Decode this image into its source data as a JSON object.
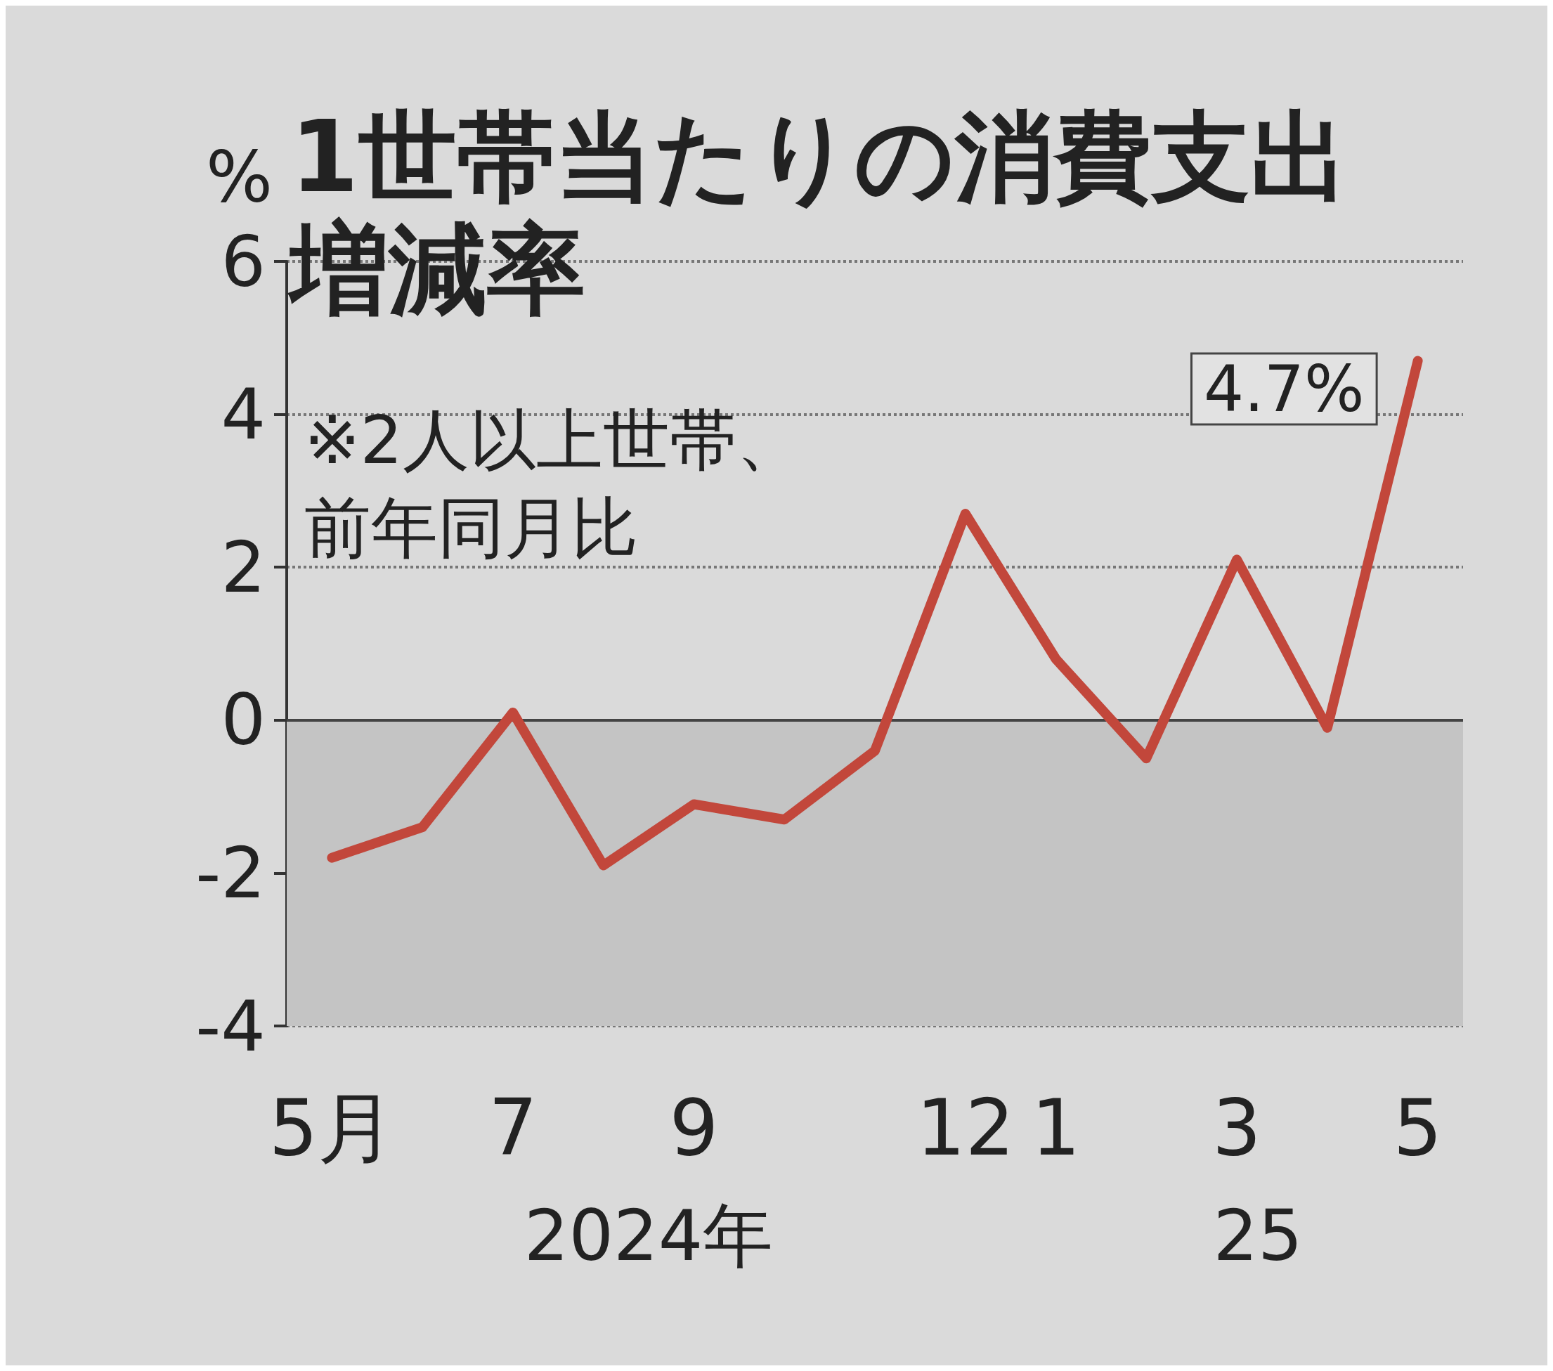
{
  "chart_data": {
    "type": "line",
    "title": "1世帯当たりの消費支出増減率",
    "ylabel": "%",
    "annotations": [
      "※2人以上世帯、前年同月比",
      "2024年",
      "25"
    ],
    "categories": [
      "5月",
      null,
      "7",
      null,
      "9",
      null,
      null,
      "12",
      "1",
      null,
      "3",
      null,
      "5"
    ],
    "series": [
      {
        "color": "#c2473b",
        "values": [
          -1.8,
          -1.4,
          0.1,
          -1.9,
          -1.1,
          -1.3,
          -0.4,
          2.7,
          0.8,
          -0.5,
          2.1,
          -0.1,
          4.7
        ],
        "value_labels": [
          null,
          null,
          null,
          null,
          null,
          null,
          null,
          null,
          null,
          null,
          null,
          null,
          "4.7%"
        ]
      }
    ],
    "ylim": [
      -4,
      6
    ],
    "yticks": [
      -4,
      -2,
      0,
      2,
      4,
      6
    ],
    "grid": "y",
    "marker": "none",
    "line_style": "solid",
    "ref_lines": [
      {
        "axis": "y",
        "value": 0,
        "color": "#444444"
      }
    ],
    "bands": [
      {
        "axis": "y",
        "from": -4,
        "to": 0,
        "color": "#c4c4c4"
      }
    ]
  }
}
